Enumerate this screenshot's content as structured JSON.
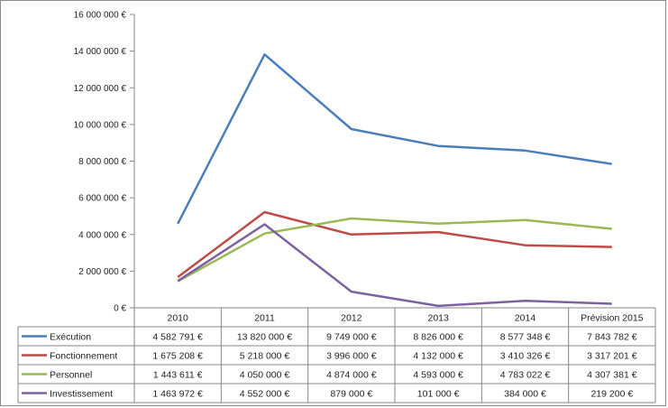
{
  "chart_data": {
    "type": "line",
    "categories": [
      "2010",
      "2011",
      "2012",
      "2013",
      "2014",
      "Prévision 2015"
    ],
    "ylim": [
      0,
      16000000
    ],
    "y_ticks": [
      "0 €",
      "2 000 000 €",
      "4 000 000 €",
      "6 000 000 €",
      "8 000 000 €",
      "10 000 000 €",
      "12 000 000 €",
      "14 000 000 €",
      "16 000 000 €"
    ],
    "grid": "none",
    "legend": "data-table",
    "series": [
      {
        "name": "Exécution",
        "color": "#4a7ebb",
        "values": [
          4582791,
          13820000,
          9749000,
          8826000,
          8577348,
          7843782
        ],
        "labels": [
          "4 582 791 €",
          "13 820 000 €",
          "9 749 000 €",
          "8 826 000 €",
          "8 577 348 €",
          "7 843 782 €"
        ]
      },
      {
        "name": "Fonctionnement",
        "color": "#be4b48",
        "values": [
          1675208,
          5218000,
          3996000,
          4132000,
          3410326,
          3317201
        ],
        "labels": [
          "1 675 208 €",
          "5 218 000 €",
          "3 996 000 €",
          "4 132 000 €",
          "3 410 326 €",
          "3 317 201 €"
        ]
      },
      {
        "name": "Personnel",
        "color": "#98b954",
        "values": [
          1443611,
          4050000,
          4874000,
          4593000,
          4783022,
          4307381
        ],
        "labels": [
          "1 443 611 €",
          "4 050 000 €",
          "4 874 000 €",
          "4 593 000 €",
          "4 783 022 €",
          "4 307 381 €"
        ]
      },
      {
        "name": "Investissement",
        "color": "#7d60a0",
        "values": [
          1463972,
          4552000,
          879000,
          101000,
          384000,
          219200
        ],
        "labels": [
          "1 463 972 €",
          "4 552 000 €",
          "879 000 €",
          "101 000 €",
          "384 000 €",
          "219 200 €"
        ]
      }
    ]
  }
}
